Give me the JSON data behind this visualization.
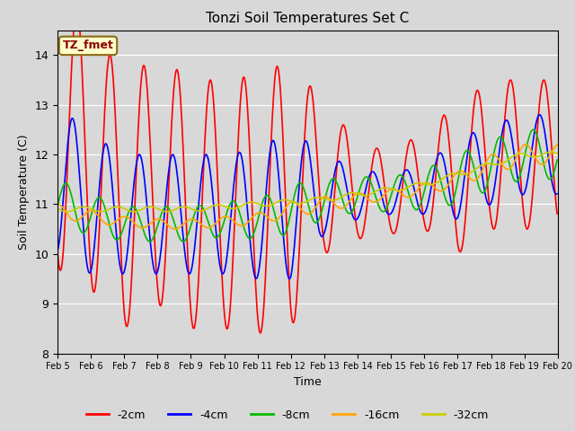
{
  "title": "Tonzi Soil Temperatures Set C",
  "xlabel": "Time",
  "ylabel": "Soil Temperature (C)",
  "ylim": [
    8.0,
    14.5
  ],
  "annotation_text": "TZ_fmet",
  "annotation_color": "#8B0000",
  "annotation_bg": "#FFFFCC",
  "annotation_border": "#8B6914",
  "background_color": "#D8D8D8",
  "series": {
    "-2cm": {
      "color": "#FF0000",
      "linewidth": 1.2
    },
    "-4cm": {
      "color": "#0000FF",
      "linewidth": 1.2
    },
    "-8cm": {
      "color": "#00BB00",
      "linewidth": 1.2
    },
    "-16cm": {
      "color": "#FFA500",
      "linewidth": 1.2
    },
    "-32cm": {
      "color": "#CCCC00",
      "linewidth": 1.2
    }
  },
  "xtick_labels": [
    "Feb 5",
    "Feb 6",
    "Feb 7",
    "Feb 8",
    "Feb 9",
    "Feb 10",
    "Feb 11",
    "Feb 12",
    "Feb 13",
    "Feb 14",
    "Feb 15",
    "Feb 16",
    "Feb 17",
    "Feb 18",
    "Feb 19",
    "Feb 20"
  ],
  "grid_color": "#FFFFFF",
  "n_days": 15,
  "pts_per_day": 48,
  "base_trend_2cm": [
    12.5,
    12.0,
    11.0,
    11.5,
    11.0,
    11.0,
    11.0,
    11.2,
    11.5,
    11.3,
    11.2,
    11.5,
    11.5,
    12.0,
    12.0,
    12.2
  ],
  "base_trend_4cm": [
    11.5,
    11.0,
    10.8,
    10.8,
    10.8,
    10.8,
    10.8,
    11.0,
    11.2,
    11.2,
    11.2,
    11.3,
    11.5,
    11.8,
    12.0,
    12.1
  ],
  "base_trend_8cm": [
    11.0,
    10.8,
    10.6,
    10.6,
    10.6,
    10.7,
    10.7,
    10.9,
    11.1,
    11.2,
    11.2,
    11.3,
    11.5,
    11.8,
    12.0,
    12.1
  ],
  "base_trend_16cm": [
    10.85,
    10.75,
    10.65,
    10.6,
    10.6,
    10.65,
    10.7,
    10.9,
    11.0,
    11.1,
    11.2,
    11.3,
    11.5,
    11.8,
    12.0,
    12.1
  ],
  "base_trend_32cm": [
    10.9,
    10.9,
    10.9,
    10.9,
    10.9,
    10.95,
    11.0,
    11.05,
    11.1,
    11.2,
    11.3,
    11.4,
    11.6,
    11.8,
    12.0,
    12.1
  ],
  "amp_2cm": [
    2.8,
    2.7,
    2.5,
    2.5,
    2.5,
    2.5,
    2.6,
    2.7,
    1.5,
    1.0,
    0.8,
    1.0,
    1.5,
    1.5,
    1.5,
    1.5
  ],
  "amp_4cm": [
    1.5,
    1.4,
    1.2,
    1.2,
    1.2,
    1.2,
    1.3,
    1.5,
    0.8,
    0.5,
    0.4,
    0.5,
    0.8,
    0.8,
    0.8,
    0.8
  ],
  "amp_8cm": [
    0.5,
    0.4,
    0.35,
    0.35,
    0.35,
    0.35,
    0.4,
    0.5,
    0.4,
    0.35,
    0.35,
    0.4,
    0.5,
    0.5,
    0.5,
    0.5
  ],
  "amp_16cm": [
    0.15,
    0.12,
    0.1,
    0.1,
    0.1,
    0.1,
    0.12,
    0.15,
    0.15,
    0.12,
    0.1,
    0.12,
    0.15,
    0.2,
    0.2,
    0.2
  ],
  "amp_32cm": [
    0.05,
    0.05,
    0.05,
    0.05,
    0.05,
    0.05,
    0.05,
    0.05,
    0.05,
    0.05,
    0.05,
    0.05,
    0.05,
    0.05,
    0.05,
    0.05
  ]
}
